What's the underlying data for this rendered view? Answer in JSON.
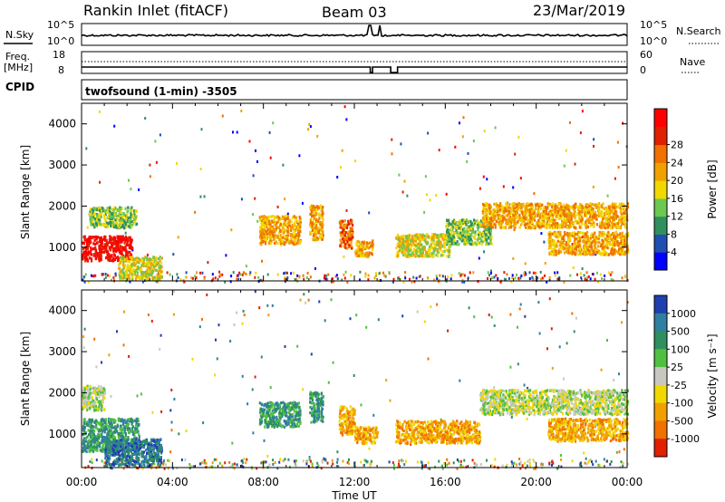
{
  "header": {
    "title": "Rankin Inlet (fitACF)",
    "beam": "Beam 03",
    "date": "23/Mar/2019"
  },
  "summary_panels": {
    "nsky_label": "N.Sky",
    "nsearch_label": "N.Search",
    "nsky_ticks": [
      "10^5",
      "10^0"
    ],
    "freq_label": "Freq.",
    "freq_unit": "[MHz]",
    "freq_ticks": [
      "18",
      "8"
    ],
    "nave_label": "Nave",
    "nave_ticks": [
      "60",
      "0"
    ],
    "cpid_label": "CPID",
    "cpid_text": "twofsound (1-min) -3505"
  },
  "chart_data": [
    {
      "type": "heatmap",
      "name": "power",
      "ylabel": "Slant Range [km]",
      "xlabel": "",
      "ylim": [
        180,
        4500
      ],
      "yticks": [
        "1000",
        "2000",
        "3000",
        "4000"
      ],
      "colorbar": {
        "label": "Power [dB]",
        "ticks": [
          "4",
          "8",
          "12",
          "16",
          "20",
          "24",
          "28"
        ],
        "colors": [
          "#0000ff",
          "#1f4fb0",
          "#2f8f5f",
          "#6cc850",
          "#f0d800",
          "#f0a000",
          "#f07000",
          "#e02000",
          "#ff0000"
        ]
      },
      "regions": [
        {
          "t0": 0.0,
          "t1": 2.2,
          "r0": 700,
          "r1": 1300,
          "level": 8
        },
        {
          "t0": 0.3,
          "t1": 2.4,
          "r0": 1500,
          "r1": 2000,
          "level": 3
        },
        {
          "t0": 1.6,
          "t1": 3.5,
          "r0": 250,
          "r1": 800,
          "level": 4
        },
        {
          "t0": 7.8,
          "t1": 9.6,
          "r0": 1100,
          "r1": 1800,
          "level": 5
        },
        {
          "t0": 10.0,
          "t1": 10.6,
          "r0": 1200,
          "r1": 2050,
          "level": 5
        },
        {
          "t0": 11.3,
          "t1": 11.9,
          "r0": 1000,
          "r1": 1700,
          "level": 6
        },
        {
          "t0": 12.0,
          "t1": 12.8,
          "r0": 800,
          "r1": 1200,
          "level": 5
        },
        {
          "t0": 13.8,
          "t1": 16.2,
          "r0": 800,
          "r1": 1350,
          "level": 4
        },
        {
          "t0": 16.0,
          "t1": 18.0,
          "r0": 1100,
          "r1": 1700,
          "level": 3
        },
        {
          "t0": 17.6,
          "t1": 24.0,
          "r0": 1500,
          "r1": 2100,
          "level": 5
        },
        {
          "t0": 20.5,
          "t1": 24.0,
          "r0": 850,
          "r1": 1400,
          "level": 5
        }
      ]
    },
    {
      "type": "heatmap",
      "name": "velocity",
      "ylabel": "Slant Range [km]",
      "xlabel": "Time UT",
      "ylim": [
        180,
        4500
      ],
      "yticks": [
        "1000",
        "2000",
        "3000",
        "4000"
      ],
      "xticks": [
        "00:00",
        "04:00",
        "08:00",
        "12:00",
        "16:00",
        "20:00",
        "00:00"
      ],
      "colorbar": {
        "label": "Velocity [m s⁻¹]",
        "ticks": [
          "1000",
          "500",
          "100",
          "25",
          "-25",
          "-100",
          "-500",
          "-1000"
        ],
        "colors": [
          "#1f3fb0",
          "#2f7fa0",
          "#2f8f5f",
          "#50c040",
          "#c8c8c0",
          "#f0d800",
          "#f0a000",
          "#f07000",
          "#e02000"
        ]
      },
      "regions": [
        {
          "t0": 0.0,
          "t1": 2.5,
          "r0": 600,
          "r1": 1400,
          "level": 2
        },
        {
          "t0": 0.0,
          "t1": 1.0,
          "r0": 1600,
          "r1": 2200,
          "level": 4
        },
        {
          "t0": 1.0,
          "t1": 3.5,
          "r0": 250,
          "r1": 900,
          "level": 1
        },
        {
          "t0": 7.8,
          "t1": 9.6,
          "r0": 1200,
          "r1": 1800,
          "level": 2
        },
        {
          "t0": 10.0,
          "t1": 10.6,
          "r0": 1300,
          "r1": 2050,
          "level": 2
        },
        {
          "t0": 11.3,
          "t1": 12.0,
          "r0": 1000,
          "r1": 1700,
          "level": 6
        },
        {
          "t0": 12.0,
          "t1": 13.0,
          "r0": 800,
          "r1": 1200,
          "level": 6
        },
        {
          "t0": 13.8,
          "t1": 17.5,
          "r0": 800,
          "r1": 1350,
          "level": 6
        },
        {
          "t0": 17.5,
          "t1": 24.0,
          "r0": 1500,
          "r1": 2100,
          "level": 4
        },
        {
          "t0": 20.5,
          "t1": 24.0,
          "r0": 850,
          "r1": 1400,
          "level": 6
        }
      ]
    }
  ]
}
